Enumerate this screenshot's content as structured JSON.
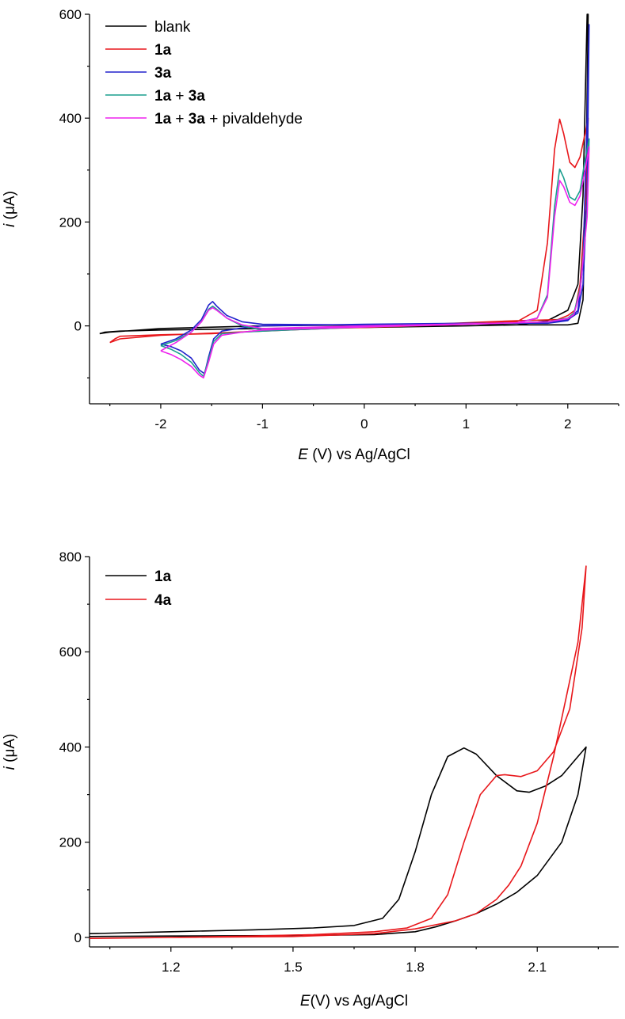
{
  "chart_data": [
    {
      "type": "line",
      "xlabel": {
        "var": "E",
        "rest": " (V) vs Ag/AgCl"
      },
      "ylabel": {
        "var": "i",
        "rest": " (μA)"
      },
      "xlim": [
        -2.7,
        2.5
      ],
      "ylim": [
        -150,
        600
      ],
      "x_ticks": [
        -2,
        -1,
        0,
        1,
        2
      ],
      "y_ticks": [
        0,
        200,
        400,
        600
      ],
      "legend_position": "top-left",
      "series": [
        {
          "name": "blank",
          "legend_parts": [
            {
              "t": "blank",
              "b": false
            }
          ],
          "color": "#000000",
          "points": [
            [
              -2.6,
              -15
            ],
            [
              -2.55,
              -12
            ],
            [
              -2.4,
              -10
            ],
            [
              -2.0,
              -8
            ],
            [
              -1.0,
              -5
            ],
            [
              0,
              -3
            ],
            [
              1,
              0
            ],
            [
              1.5,
              2
            ],
            [
              1.8,
              10
            ],
            [
              2.0,
              30
            ],
            [
              2.1,
              80
            ],
            [
              2.15,
              250
            ],
            [
              2.19,
              600
            ],
            [
              2.2,
              600
            ],
            [
              2.18,
              300
            ],
            [
              2.15,
              50
            ],
            [
              2.1,
              5
            ],
            [
              2.0,
              2
            ],
            [
              1.5,
              2
            ],
            [
              1.0,
              4
            ],
            [
              0,
              2
            ],
            [
              -1.0,
              0
            ],
            [
              -2.0,
              -5
            ],
            [
              -2.5,
              -12
            ],
            [
              -2.6,
              -15
            ]
          ]
        },
        {
          "name": "1a",
          "legend_parts": [
            {
              "t": "1a",
              "b": true
            }
          ],
          "color": "#e8171b",
          "points": [
            [
              -2.5,
              -32
            ],
            [
              -2.45,
              -25
            ],
            [
              -2.4,
              -20
            ],
            [
              -2.0,
              -17
            ],
            [
              -1.5,
              -15
            ],
            [
              -1.2,
              -12
            ],
            [
              -1.0,
              -8
            ],
            [
              0,
              -3
            ],
            [
              1,
              3
            ],
            [
              1.5,
              8
            ],
            [
              1.7,
              30
            ],
            [
              1.8,
              160
            ],
            [
              1.87,
              340
            ],
            [
              1.92,
              398
            ],
            [
              1.96,
              370
            ],
            [
              2.02,
              315
            ],
            [
              2.07,
              305
            ],
            [
              2.12,
              325
            ],
            [
              2.17,
              370
            ],
            [
              2.2,
              400
            ],
            [
              2.18,
              250
            ],
            [
              2.12,
              80
            ],
            [
              2.07,
              30
            ],
            [
              2.0,
              20
            ],
            [
              1.9,
              12
            ],
            [
              1.5,
              10
            ],
            [
              1.0,
              6
            ],
            [
              0,
              -2
            ],
            [
              -1.0,
              -10
            ],
            [
              -2.0,
              -18
            ],
            [
              -2.4,
              -25
            ],
            [
              -2.5,
              -32
            ]
          ]
        },
        {
          "name": "3a",
          "legend_parts": [
            {
              "t": "3a",
              "b": true
            }
          ],
          "color": "#2222cc",
          "points": [
            [
              -2.0,
              -35
            ],
            [
              -1.9,
              -40
            ],
            [
              -1.8,
              -48
            ],
            [
              -1.7,
              -62
            ],
            [
              -1.62,
              -85
            ],
            [
              -1.57,
              -92
            ],
            [
              -1.53,
              -60
            ],
            [
              -1.48,
              -25
            ],
            [
              -1.4,
              -10
            ],
            [
              -1.2,
              -4
            ],
            [
              -1.0,
              0
            ],
            [
              0,
              3
            ],
            [
              1,
              5
            ],
            [
              1.5,
              5
            ],
            [
              1.8,
              5
            ],
            [
              2.0,
              10
            ],
            [
              2.1,
              30
            ],
            [
              2.15,
              120
            ],
            [
              2.19,
              400
            ],
            [
              2.21,
              580
            ],
            [
              2.19,
              250
            ],
            [
              2.15,
              80
            ],
            [
              2.1,
              25
            ],
            [
              2.0,
              12
            ],
            [
              1.8,
              8
            ],
            [
              1.5,
              6
            ],
            [
              1.0,
              4
            ],
            [
              0,
              2
            ],
            [
              -1.0,
              3
            ],
            [
              -1.2,
              8
            ],
            [
              -1.35,
              20
            ],
            [
              -1.45,
              38
            ],
            [
              -1.49,
              47
            ],
            [
              -1.53,
              40
            ],
            [
              -1.6,
              12
            ],
            [
              -1.7,
              -8
            ],
            [
              -1.85,
              -25
            ],
            [
              -2.0,
              -35
            ]
          ]
        },
        {
          "name": "1a + 3a",
          "legend_parts": [
            {
              "t": "1a",
              "b": true
            },
            {
              "t": " + ",
              "b": false
            },
            {
              "t": "3a",
              "b": true
            }
          ],
          "color": "#1a9e8e",
          "points": [
            [
              -2.0,
              -38
            ],
            [
              -1.9,
              -45
            ],
            [
              -1.8,
              -55
            ],
            [
              -1.7,
              -70
            ],
            [
              -1.62,
              -90
            ],
            [
              -1.58,
              -97
            ],
            [
              -1.53,
              -65
            ],
            [
              -1.48,
              -30
            ],
            [
              -1.4,
              -15
            ],
            [
              -1.2,
              -12
            ],
            [
              -1.0,
              -10
            ],
            [
              0,
              -2
            ],
            [
              1,
              3
            ],
            [
              1.5,
              6
            ],
            [
              1.7,
              15
            ],
            [
              1.8,
              60
            ],
            [
              1.87,
              230
            ],
            [
              1.92,
              302
            ],
            [
              1.96,
              285
            ],
            [
              2.02,
              248
            ],
            [
              2.07,
              242
            ],
            [
              2.12,
              260
            ],
            [
              2.17,
              320
            ],
            [
              2.21,
              360
            ],
            [
              2.19,
              220
            ],
            [
              2.12,
              70
            ],
            [
              2.06,
              25
            ],
            [
              2.0,
              15
            ],
            [
              1.8,
              8
            ],
            [
              1.5,
              6
            ],
            [
              1.0,
              4
            ],
            [
              0,
              0
            ],
            [
              -1.0,
              -8
            ],
            [
              -1.2,
              0
            ],
            [
              -1.35,
              15
            ],
            [
              -1.45,
              32
            ],
            [
              -1.49,
              38
            ],
            [
              -1.53,
              32
            ],
            [
              -1.6,
              8
            ],
            [
              -1.7,
              -12
            ],
            [
              -1.85,
              -28
            ],
            [
              -2.0,
              -38
            ]
          ]
        },
        {
          "name": "1a + 3a + pivaldehyde",
          "legend_parts": [
            {
              "t": "1a",
              "b": true
            },
            {
              "t": " + ",
              "b": false
            },
            {
              "t": "3a",
              "b": true
            },
            {
              "t": " + pivaldehyde",
              "b": false
            }
          ],
          "color": "#ee22ee",
          "points": [
            [
              -2.0,
              -48
            ],
            [
              -1.9,
              -55
            ],
            [
              -1.8,
              -65
            ],
            [
              -1.7,
              -78
            ],
            [
              -1.62,
              -95
            ],
            [
              -1.58,
              -100
            ],
            [
              -1.53,
              -70
            ],
            [
              -1.48,
              -35
            ],
            [
              -1.4,
              -18
            ],
            [
              -1.2,
              -12
            ],
            [
              -1.0,
              -8
            ],
            [
              0,
              -2
            ],
            [
              1,
              3
            ],
            [
              1.5,
              6
            ],
            [
              1.7,
              15
            ],
            [
              1.8,
              55
            ],
            [
              1.87,
              210
            ],
            [
              1.92,
              280
            ],
            [
              1.96,
              268
            ],
            [
              2.02,
              238
            ],
            [
              2.07,
              232
            ],
            [
              2.12,
              250
            ],
            [
              2.17,
              300
            ],
            [
              2.21,
              345
            ],
            [
              2.19,
              210
            ],
            [
              2.12,
              65
            ],
            [
              2.06,
              22
            ],
            [
              2.0,
              14
            ],
            [
              1.8,
              8
            ],
            [
              1.5,
              6
            ],
            [
              1.0,
              4
            ],
            [
              0,
              0
            ],
            [
              -1.0,
              -5
            ],
            [
              -1.2,
              2
            ],
            [
              -1.35,
              15
            ],
            [
              -1.45,
              30
            ],
            [
              -1.49,
              35
            ],
            [
              -1.53,
              30
            ],
            [
              -1.6,
              8
            ],
            [
              -1.7,
              -12
            ],
            [
              -1.85,
              -32
            ],
            [
              -2.0,
              -48
            ]
          ]
        }
      ]
    },
    {
      "type": "line",
      "xlabel": {
        "var": "E",
        "rest": "(V) vs Ag/AgCl"
      },
      "ylabel": {
        "var": "i",
        "rest": " (μA)"
      },
      "xlim": [
        1.0,
        2.3
      ],
      "ylim": [
        -20,
        800
      ],
      "x_ticks": [
        1.2,
        1.5,
        1.8,
        2.1
      ],
      "y_ticks": [
        0,
        200,
        400,
        600,
        800
      ],
      "legend_position": "top-left",
      "series": [
        {
          "name": "1a",
          "legend_parts": [
            {
              "t": "1a",
              "b": true
            }
          ],
          "color": "#000000",
          "points": [
            [
              1.0,
              8
            ],
            [
              1.2,
              12
            ],
            [
              1.4,
              16
            ],
            [
              1.55,
              20
            ],
            [
              1.65,
              25
            ],
            [
              1.72,
              40
            ],
            [
              1.76,
              80
            ],
            [
              1.8,
              180
            ],
            [
              1.84,
              300
            ],
            [
              1.88,
              380
            ],
            [
              1.92,
              398
            ],
            [
              1.95,
              385
            ],
            [
              2.0,
              340
            ],
            [
              2.05,
              308
            ],
            [
              2.08,
              305
            ],
            [
              2.12,
              318
            ],
            [
              2.16,
              340
            ],
            [
              2.2,
              380
            ],
            [
              2.22,
              400
            ],
            [
              2.2,
              300
            ],
            [
              2.16,
              200
            ],
            [
              2.1,
              130
            ],
            [
              2.05,
              95
            ],
            [
              2.0,
              70
            ],
            [
              1.95,
              50
            ],
            [
              1.9,
              35
            ],
            [
              1.85,
              22
            ],
            [
              1.8,
              12
            ],
            [
              1.7,
              6
            ],
            [
              1.5,
              4
            ],
            [
              1.2,
              3
            ],
            [
              1.0,
              2
            ]
          ]
        },
        {
          "name": "4a",
          "legend_parts": [
            {
              "t": "4a",
              "b": true
            }
          ],
          "color": "#e8171b",
          "points": [
            [
              1.0,
              -2
            ],
            [
              1.2,
              0
            ],
            [
              1.4,
              3
            ],
            [
              1.55,
              6
            ],
            [
              1.7,
              12
            ],
            [
              1.78,
              20
            ],
            [
              1.84,
              40
            ],
            [
              1.88,
              90
            ],
            [
              1.92,
              200
            ],
            [
              1.96,
              300
            ],
            [
              2.0,
              340
            ],
            [
              2.02,
              342
            ],
            [
              2.06,
              338
            ],
            [
              2.1,
              350
            ],
            [
              2.14,
              390
            ],
            [
              2.18,
              480
            ],
            [
              2.21,
              650
            ],
            [
              2.22,
              780
            ],
            [
              2.2,
              620
            ],
            [
              2.17,
              500
            ],
            [
              2.14,
              380
            ],
            [
              2.1,
              240
            ],
            [
              2.06,
              150
            ],
            [
              2.03,
              110
            ],
            [
              2.0,
              80
            ],
            [
              1.95,
              50
            ],
            [
              1.9,
              35
            ],
            [
              1.8,
              18
            ],
            [
              1.7,
              8
            ],
            [
              1.5,
              2
            ],
            [
              1.2,
              0
            ],
            [
              1.0,
              -2
            ]
          ]
        }
      ]
    }
  ]
}
